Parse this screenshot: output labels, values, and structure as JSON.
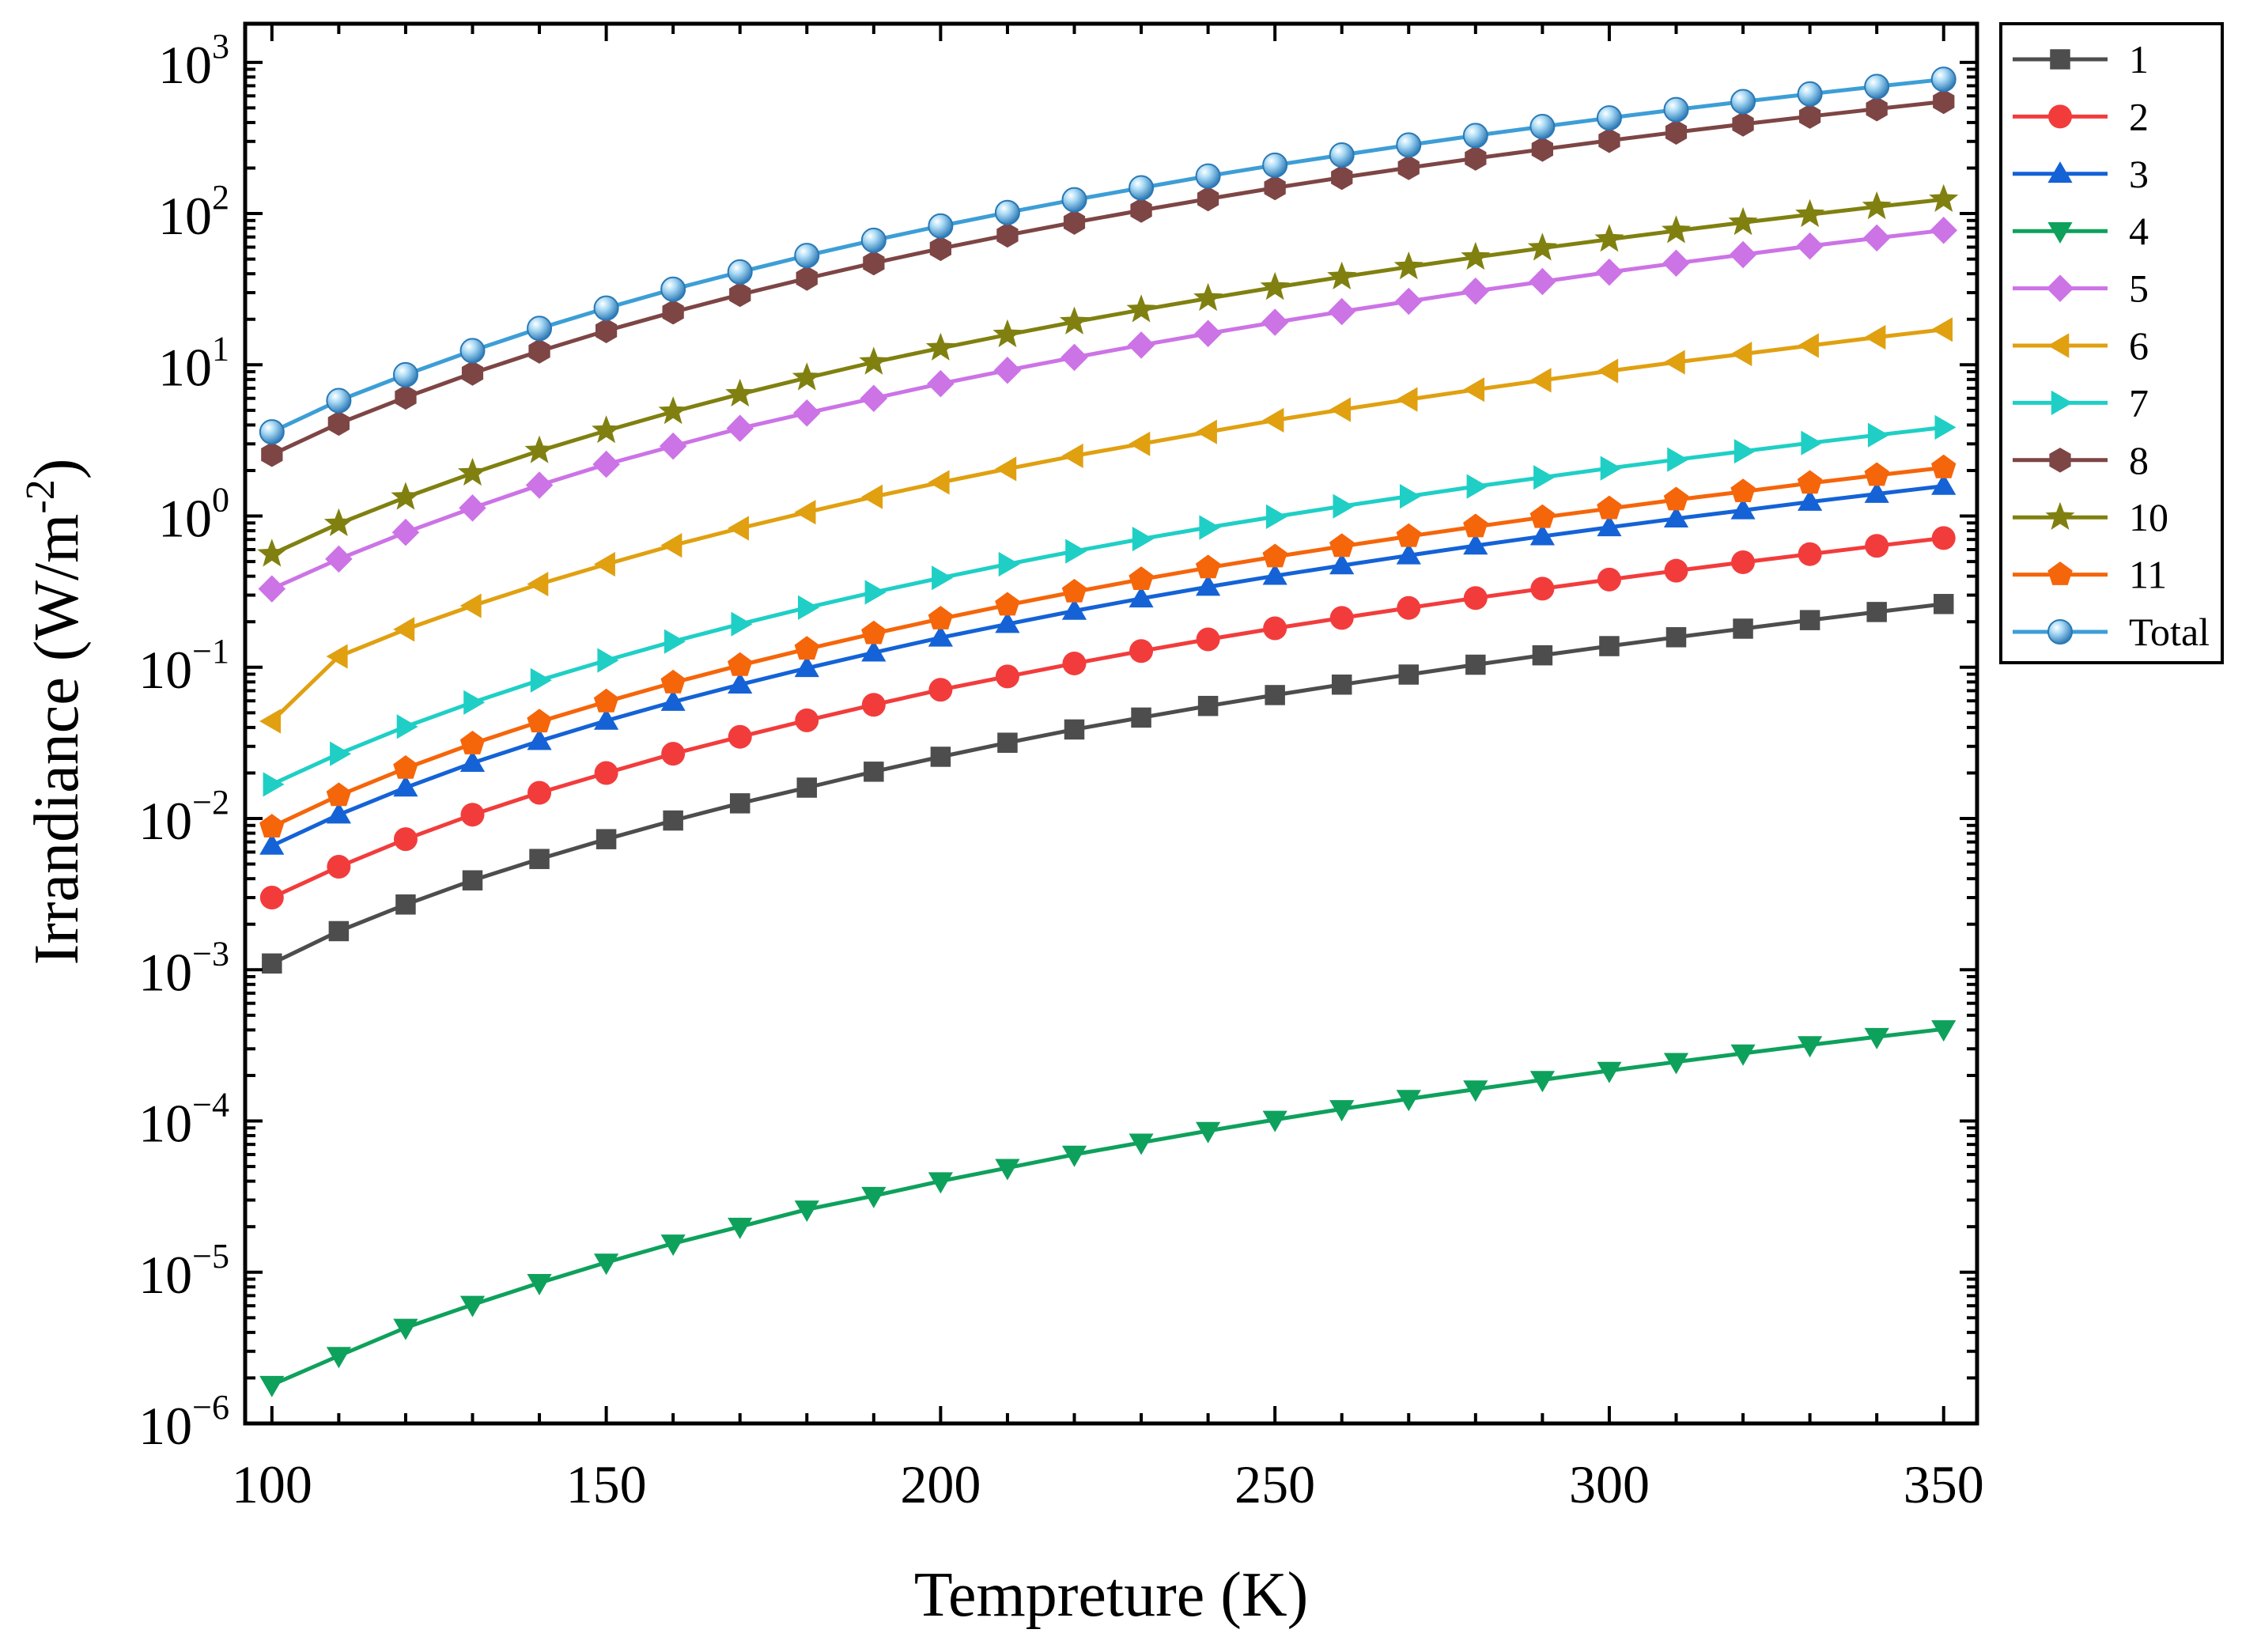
{
  "chart_data": {
    "type": "line",
    "title": "",
    "xlabel": "Tempreture (K)",
    "ylabel": "Irrandiance (W/m-2)",
    "ylabel_main": "Irrandiance (W/m",
    "ylabel_sup": "-2",
    "ylabel_close": ")",
    "yscale": "log",
    "xlim": [
      96,
      355
    ],
    "ylim": [
      1e-06,
      1800
    ],
    "grid": false,
    "legend_position": "outside-right",
    "xticks": [
      {
        "value": 100,
        "label": "100"
      },
      {
        "value": 150,
        "label": "150"
      },
      {
        "value": 200,
        "label": "200"
      },
      {
        "value": 250,
        "label": "250"
      },
      {
        "value": 300,
        "label": "300"
      },
      {
        "value": 350,
        "label": "350"
      }
    ],
    "yticks": [
      {
        "exp": -6,
        "base": "10",
        "sup": "−6"
      },
      {
        "exp": -5,
        "base": "10",
        "sup": "−5"
      },
      {
        "exp": -4,
        "base": "10",
        "sup": "−4"
      },
      {
        "exp": -3,
        "base": "10",
        "sup": "−3"
      },
      {
        "exp": -2,
        "base": "10",
        "sup": "−2"
      },
      {
        "exp": -1,
        "base": "10",
        "sup": "−1"
      },
      {
        "exp": 0,
        "base": "10",
        "sup": "0"
      },
      {
        "exp": 1,
        "base": "10",
        "sup": "1"
      },
      {
        "exp": 2,
        "base": "10",
        "sup": "2"
      },
      {
        "exp": 3,
        "base": "10",
        "sup": "3"
      }
    ],
    "x": [
      100,
      110,
      120,
      130,
      140,
      150,
      160,
      170,
      180,
      190,
      200,
      210,
      220,
      230,
      240,
      250,
      260,
      270,
      280,
      290,
      300,
      310,
      320,
      330,
      340,
      350
    ],
    "series": [
      {
        "name": "1",
        "color": "#4d4d4d",
        "marker": "square",
        "values": [
          0.0011,
          0.0018,
          0.0027,
          0.0039,
          0.0054,
          0.0073,
          0.0097,
          0.0126,
          0.016,
          0.0204,
          0.0256,
          0.0317,
          0.0388,
          0.0465,
          0.0555,
          0.0655,
          0.0768,
          0.0895,
          0.104,
          0.12,
          0.138,
          0.158,
          0.18,
          0.205,
          0.232,
          0.262
        ]
      },
      {
        "name": "2",
        "color": "#f23c3c",
        "marker": "circle",
        "values": [
          0.003,
          0.0048,
          0.0073,
          0.0106,
          0.0148,
          0.02,
          0.0268,
          0.0347,
          0.0446,
          0.0565,
          0.071,
          0.087,
          0.106,
          0.128,
          0.153,
          0.181,
          0.212,
          0.247,
          0.287,
          0.331,
          0.38,
          0.435,
          0.495,
          0.56,
          0.635,
          0.715
        ]
      },
      {
        "name": "3",
        "color": "#1462d6",
        "marker": "triangle-up",
        "values": [
          0.0066,
          0.0106,
          0.016,
          0.0233,
          0.0325,
          0.0443,
          0.059,
          0.0768,
          0.0987,
          0.125,
          0.157,
          0.193,
          0.236,
          0.285,
          0.34,
          0.402,
          0.471,
          0.549,
          0.637,
          0.734,
          0.842,
          0.962,
          1.09,
          1.24,
          1.4,
          1.58
        ]
      },
      {
        "name": "4",
        "color": "#0ea15c",
        "marker": "triangle-down",
        "values": [
          1.8e-06,
          2.8e-06,
          4.3e-06,
          6.1e-06,
          8.5e-06,
          1.16e-05,
          1.55e-05,
          2e-05,
          2.6e-05,
          3.2e-05,
          4e-05,
          4.9e-05,
          6e-05,
          7.2e-05,
          8.6e-05,
          0.000102,
          0.00012,
          0.00014,
          0.000162,
          0.000187,
          0.000215,
          0.000246,
          0.00028,
          0.000318,
          0.00036,
          0.000405
        ]
      },
      {
        "name": "5",
        "color": "#cc73e6",
        "marker": "diamond",
        "values": [
          0.33,
          0.52,
          0.78,
          1.13,
          1.6,
          2.2,
          2.9,
          3.8,
          4.8,
          6.0,
          7.5,
          9.2,
          11.2,
          13.5,
          16.1,
          19.1,
          22.5,
          26.3,
          30.7,
          35.5,
          41.0,
          47.0,
          53.5,
          61.0,
          69.0,
          77.5
        ]
      },
      {
        "name": "6",
        "color": "#e0a010",
        "marker": "triangle-left",
        "values": [
          0.044,
          0.118,
          0.178,
          0.255,
          0.355,
          0.48,
          0.64,
          0.83,
          1.06,
          1.34,
          1.67,
          2.05,
          2.5,
          3.0,
          3.6,
          4.3,
          5.05,
          5.9,
          6.85,
          7.9,
          9.1,
          10.4,
          11.8,
          13.4,
          15.2,
          17.1
        ]
      },
      {
        "name": "7",
        "color": "#1fcfc5",
        "marker": "triangle-right",
        "values": [
          0.0168,
          0.0268,
          0.0405,
          0.0585,
          0.082,
          0.111,
          0.148,
          0.193,
          0.248,
          0.313,
          0.39,
          0.48,
          0.585,
          0.705,
          0.84,
          0.99,
          1.16,
          1.35,
          1.57,
          1.8,
          2.07,
          2.36,
          2.68,
          3.04,
          3.43,
          3.86
        ]
      },
      {
        "name": "8",
        "color": "#7e4545",
        "marker": "hexagon",
        "values": [
          2.55,
          4.1,
          6.1,
          8.8,
          12.3,
          16.8,
          22.3,
          29.1,
          37.3,
          47.1,
          58.7,
          72.0,
          87.5,
          105,
          125,
          148,
          173,
          201,
          232,
          266,
          304,
          345,
          390,
          439,
          492,
          550
        ]
      },
      {
        "name": "10",
        "color": "#808010",
        "marker": "star",
        "values": [
          0.56,
          0.89,
          1.33,
          1.92,
          2.7,
          3.67,
          4.9,
          6.4,
          8.2,
          10.4,
          12.9,
          15.8,
          19.2,
          23.1,
          27.5,
          32.5,
          38.1,
          44.4,
          51.4,
          59.1,
          67.6,
          77.0,
          87.2,
          98.5,
          111,
          124
        ]
      },
      {
        "name": "11",
        "color": "#f5650a",
        "marker": "pentagon",
        "values": [
          0.0088,
          0.0142,
          0.0215,
          0.0312,
          0.0436,
          0.0592,
          0.079,
          0.103,
          0.132,
          0.167,
          0.209,
          0.258,
          0.315,
          0.381,
          0.455,
          0.538,
          0.63,
          0.734,
          0.85,
          0.98,
          1.12,
          1.28,
          1.45,
          1.65,
          1.86,
          2.09
        ]
      },
      {
        "name": "Total",
        "color": "#3d9ed6",
        "marker": "sphere",
        "values": [
          3.6,
          5.8,
          8.6,
          12.4,
          17.4,
          23.7,
          31.6,
          41.1,
          52.8,
          66.6,
          82.8,
          101.6,
          123.4,
          148,
          177,
          209,
          244,
          284,
          328,
          376,
          429,
          487,
          550,
          618,
          692,
          772
        ]
      }
    ]
  }
}
